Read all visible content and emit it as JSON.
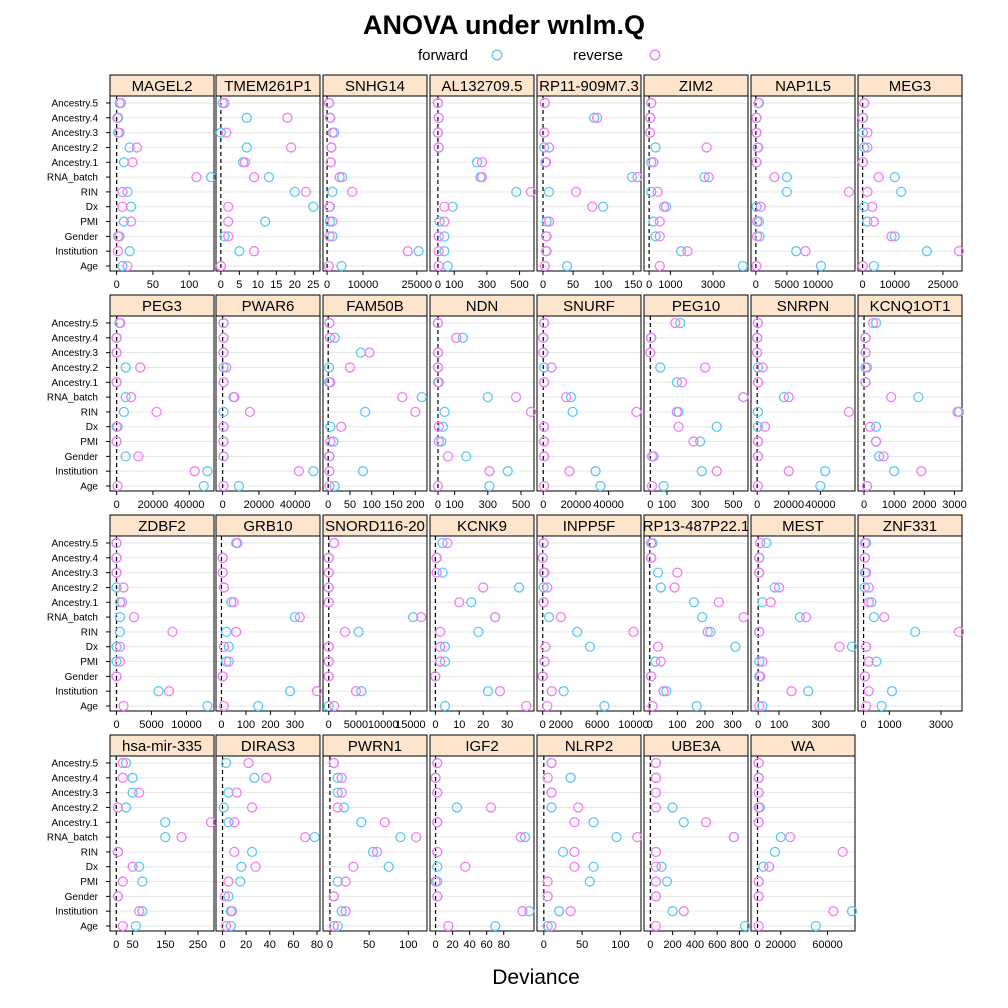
{
  "chart_data": {
    "type": "scatter",
    "title": "ANOVA under wnlm.Q",
    "xlabel": "Deviance",
    "legend": {
      "position": "top",
      "entries": [
        {
          "name": "forward",
          "color": "#5cc8f5"
        },
        {
          "name": "reverse",
          "color": "#f57cf0"
        }
      ]
    },
    "factors": [
      "Ancestry.5",
      "Ancestry.4",
      "Ancestry.3",
      "Ancestry.2",
      "Ancestry.1",
      "RNA_batch",
      "RIN",
      "Dx",
      "PMI",
      "Gender",
      "Institution",
      "Age"
    ],
    "colors": {
      "forward": "#5cc8f5",
      "reverse": "#f57cf0",
      "strip": "#fde5cd",
      "grid": "#e6e6e6"
    },
    "panels": [
      {
        "gene": "MAGEL2",
        "ticks": [
          0,
          50,
          100
        ],
        "xlim": [
          -5,
          130
        ],
        "forward": [
          4,
          2,
          2,
          18,
          10,
          130,
          15,
          20,
          10,
          4,
          18,
          8
        ],
        "reverse": [
          6,
          1,
          4,
          28,
          22,
          110,
          8,
          8,
          20,
          2,
          2,
          15
        ]
      },
      {
        "gene": "TMEM261P1",
        "ticks": [
          0,
          5,
          10,
          15,
          20,
          25
        ],
        "xlim": [
          -0.5,
          26
        ],
        "forward": [
          0.5,
          7,
          0,
          7,
          6,
          13,
          20,
          25,
          12,
          1,
          5,
          0
        ],
        "reverse": [
          1,
          18,
          1.5,
          19,
          6.5,
          9,
          23,
          2,
          2,
          2,
          9,
          0
        ]
      },
      {
        "gene": "SNHG14",
        "ticks": [
          0,
          10000,
          25000
        ],
        "xlim": [
          -300,
          27000
        ],
        "forward": [
          600,
          900,
          2000,
          1200,
          1000,
          4200,
          1500,
          800,
          800,
          1500,
          25500,
          4000
        ],
        "reverse": [
          500,
          800,
          1500,
          1200,
          1000,
          3500,
          7000,
          700,
          1500,
          700,
          22500,
          500
        ]
      },
      {
        "gene": "AL132709.5",
        "ticks": [
          0,
          100,
          300,
          500
        ],
        "xlim": [
          -30,
          570
        ],
        "forward": [
          0,
          5,
          0,
          5,
          240,
          260,
          480,
          90,
          10,
          40,
          40,
          60
        ],
        "reverse": [
          0,
          5,
          0,
          5,
          270,
          270,
          570,
          40,
          40,
          5,
          5,
          5
        ]
      },
      {
        "gene": "RP11-909M7.3",
        "ticks": [
          0,
          50,
          100,
          150
        ],
        "xlim": [
          -5,
          158
        ],
        "forward": [
          3,
          85,
          2,
          2,
          4,
          148,
          10,
          100,
          6,
          6,
          6,
          40
        ],
        "reverse": [
          3,
          90,
          2,
          10,
          5,
          157,
          55,
          82,
          10,
          5,
          5,
          3
        ]
      },
      {
        "gene": "ZIM2",
        "ticks": [
          0,
          1000,
          3000
        ],
        "xlim": [
          -100,
          4500
        ],
        "forward": [
          100,
          50,
          50,
          300,
          100,
          2600,
          100,
          800,
          200,
          300,
          1500,
          4400
        ],
        "reverse": [
          100,
          50,
          50,
          2700,
          200,
          2800,
          400,
          700,
          500,
          500,
          1800,
          500
        ]
      },
      {
        "gene": "NAP1L5",
        "ticks": [
          0,
          5000,
          10000
        ],
        "xlim": [
          -300,
          15500
        ],
        "forward": [
          400,
          100,
          100,
          400,
          100,
          5000,
          5000,
          100,
          500,
          600,
          6500,
          10500
        ],
        "reverse": [
          500,
          100,
          100,
          300,
          100,
          3000,
          15000,
          800,
          200,
          200,
          8000,
          100
        ]
      },
      {
        "gene": "MEG3",
        "ticks": [
          0,
          10000,
          25000
        ],
        "xlim": [
          -500,
          30000
        ],
        "forward": [
          500,
          100,
          100,
          500,
          100,
          10000,
          12000,
          500,
          1500,
          10000,
          20000,
          3500
        ],
        "reverse": [
          500,
          100,
          1500,
          1500,
          100,
          5000,
          1500,
          3000,
          3500,
          9000,
          30000,
          100
        ]
      },
      {
        "gene": "PEG3",
        "ticks": [
          0,
          20000,
          40000
        ],
        "xlim": [
          -2000,
          52000
        ],
        "forward": [
          1500,
          0,
          0,
          5000,
          0,
          5000,
          4000,
          0,
          0,
          5000,
          50000,
          48000
        ],
        "reverse": [
          2000,
          0,
          0,
          13000,
          0,
          8000,
          22000,
          500,
          0,
          12000,
          43000,
          500
        ]
      },
      {
        "gene": "PWAR6",
        "ticks": [
          0,
          20000,
          40000
        ],
        "xlim": [
          -2000,
          52000
        ],
        "forward": [
          500,
          500,
          500,
          500,
          500,
          6000,
          500,
          500,
          500,
          500,
          50000,
          9000
        ],
        "reverse": [
          500,
          500,
          500,
          2000,
          500,
          6500,
          15000,
          500,
          500,
          500,
          42000,
          500
        ]
      },
      {
        "gene": "FAM50B",
        "ticks": [
          0,
          50,
          100,
          150,
          200
        ],
        "xlim": [
          -5,
          220
        ],
        "forward": [
          3,
          15,
          75,
          2,
          2,
          215,
          85,
          5,
          12,
          2,
          80,
          15
        ],
        "reverse": [
          3,
          4,
          95,
          50,
          5,
          170,
          200,
          30,
          5,
          3,
          3,
          3
        ]
      },
      {
        "gene": "NDN",
        "ticks": [
          0,
          100,
          300,
          500
        ],
        "xlim": [
          -30,
          560
        ],
        "forward": [
          0,
          150,
          0,
          0,
          5,
          300,
          40,
          30,
          20,
          170,
          420,
          310
        ],
        "reverse": [
          0,
          110,
          0,
          0,
          0,
          470,
          560,
          5,
          5,
          60,
          310,
          0
        ]
      },
      {
        "gene": "SNURF",
        "ticks": [
          0,
          20000,
          40000
        ],
        "xlim": [
          -2000,
          58000
        ],
        "forward": [
          500,
          0,
          0,
          500,
          500,
          17000,
          18000,
          500,
          500,
          500,
          32000,
          35000
        ],
        "reverse": [
          500,
          0,
          0,
          5000,
          500,
          14000,
          57000,
          500,
          500,
          500,
          16000,
          500
        ]
      },
      {
        "gene": "PEG10",
        "ticks": [
          0,
          100,
          300,
          500
        ],
        "xlim": [
          -20,
          570
        ],
        "forward": [
          180,
          5,
          0,
          60,
          160,
          560,
          170,
          400,
          300,
          20,
          310,
          80
        ],
        "reverse": [
          150,
          5,
          0,
          330,
          190,
          560,
          160,
          170,
          260,
          10,
          400,
          10
        ]
      },
      {
        "gene": "SNRPN",
        "ticks": [
          0,
          20000,
          40000
        ],
        "xlim": [
          -2000,
          60000
        ],
        "forward": [
          500,
          0,
          0,
          500,
          500,
          17000,
          500,
          500,
          500,
          500,
          43000,
          40000
        ],
        "reverse": [
          500,
          0,
          0,
          3500,
          500,
          20000,
          58000,
          5000,
          500,
          500,
          20000,
          500
        ]
      },
      {
        "gene": "KCNQ1OT1",
        "ticks": [
          0,
          1000,
          2000,
          3000
        ],
        "xlim": [
          -100,
          3150
        ],
        "forward": [
          400,
          50,
          50,
          50,
          50,
          1800,
          3150,
          400,
          400,
          500,
          1000,
          100
        ],
        "reverse": [
          300,
          50,
          50,
          100,
          50,
          900,
          3100,
          200,
          400,
          650,
          1900,
          100
        ]
      },
      {
        "gene": "ZDBF2",
        "ticks": [
          0,
          5000,
          10000
        ],
        "xlim": [
          -500,
          13500
        ],
        "forward": [
          0,
          0,
          0,
          0,
          500,
          500,
          500,
          0,
          0,
          0,
          6000,
          13000
        ],
        "reverse": [
          0,
          0,
          0,
          1000,
          800,
          2500,
          8000,
          500,
          500,
          0,
          7500,
          1000
        ]
      },
      {
        "gene": "GRB10",
        "ticks": [
          0,
          100,
          200,
          300
        ],
        "xlim": [
          -10,
          390
        ],
        "forward": [
          60,
          5,
          5,
          10,
          40,
          300,
          20,
          30,
          20,
          5,
          280,
          150
        ],
        "reverse": [
          65,
          5,
          5,
          10,
          50,
          320,
          60,
          10,
          30,
          5,
          390,
          10
        ]
      },
      {
        "gene": "SNORD116-20",
        "ticks": [
          0,
          5000,
          10000,
          15000
        ],
        "xlim": [
          -500,
          17500
        ],
        "forward": [
          1000,
          0,
          0,
          0,
          0,
          15500,
          5500,
          0,
          0,
          0,
          6000,
          0
        ],
        "reverse": [
          1000,
          0,
          0,
          0,
          0,
          17000,
          3000,
          0,
          0,
          0,
          5000,
          1000
        ]
      },
      {
        "gene": "KCNK9",
        "ticks": [
          0,
          10,
          20,
          30
        ],
        "xlim": [
          -1,
          40
        ],
        "forward": [
          3,
          0.5,
          3,
          35,
          15,
          25,
          18,
          4,
          4,
          0,
          22,
          4
        ],
        "reverse": [
          5,
          0.5,
          0.5,
          20,
          10,
          25,
          2,
          2,
          2,
          0,
          27,
          38
        ]
      },
      {
        "gene": "INPP5F",
        "ticks": [
          0,
          2000,
          6000,
          10000
        ],
        "xlim": [
          -300,
          10500
        ],
        "forward": [
          100,
          0,
          100,
          100,
          100,
          700,
          3800,
          5200,
          200,
          0,
          2300,
          6800
        ],
        "reverse": [
          100,
          0,
          200,
          500,
          100,
          2000,
          10000,
          300,
          200,
          0,
          1000,
          500
        ]
      },
      {
        "gene": "RP13-487P22.1",
        "ticks": [
          0,
          100,
          200,
          300
        ],
        "xlim": [
          -10,
          345
        ],
        "forward": [
          10,
          5,
          30,
          40,
          160,
          190,
          220,
          310,
          20,
          5,
          60,
          170
        ],
        "reverse": [
          5,
          5,
          100,
          90,
          250,
          340,
          210,
          30,
          40,
          5,
          50,
          10
        ]
      },
      {
        "gene": "MEST",
        "ticks": [
          0,
          100,
          300
        ],
        "xlim": [
          -20,
          450
        ],
        "forward": [
          40,
          5,
          5,
          80,
          20,
          200,
          5,
          450,
          5,
          5,
          240,
          20
        ],
        "reverse": [
          10,
          5,
          5,
          100,
          60,
          230,
          5,
          390,
          20,
          10,
          160,
          5
        ]
      },
      {
        "gene": "ZNF331",
        "ticks": [
          0,
          1000,
          3000
        ],
        "xlim": [
          -100,
          3700
        ],
        "forward": [
          100,
          50,
          50,
          50,
          300,
          400,
          2000,
          100,
          500,
          50,
          1100,
          700
        ],
        "reverse": [
          50,
          50,
          100,
          200,
          200,
          800,
          3700,
          100,
          200,
          50,
          200,
          100
        ]
      },
      {
        "gene": "hsa-mir-335",
        "ticks": [
          0,
          50,
          150,
          250
        ],
        "xlim": [
          -10,
          290
        ],
        "forward": [
          30,
          50,
          50,
          30,
          150,
          150,
          5,
          70,
          80,
          5,
          80,
          60
        ],
        "reverse": [
          20,
          20,
          70,
          5,
          290,
          200,
          5,
          50,
          20,
          5,
          70,
          20
        ]
      },
      {
        "gene": "DIRAS3",
        "ticks": [
          0,
          20,
          40,
          60,
          80
        ],
        "xlim": [
          -3,
          80
        ],
        "forward": [
          3,
          27,
          5,
          1,
          5,
          78,
          25,
          16,
          15,
          5,
          7,
          7
        ],
        "reverse": [
          22,
          37,
          12,
          25,
          10,
          70,
          10,
          28,
          5,
          2,
          8,
          3
        ]
      },
      {
        "gene": "PWRN1",
        "ticks": [
          0,
          50,
          100
        ],
        "xlim": [
          -5,
          120
        ],
        "forward": [
          5,
          10,
          10,
          18,
          40,
          90,
          55,
          75,
          10,
          5,
          15,
          10
        ],
        "reverse": [
          5,
          15,
          15,
          10,
          70,
          110,
          60,
          30,
          20,
          5,
          20,
          5
        ]
      },
      {
        "gene": "IGF2",
        "ticks": [
          0,
          20,
          40,
          60,
          80
        ],
        "xlim": [
          -3,
          112
        ],
        "forward": [
          2,
          0,
          2,
          25,
          2,
          105,
          2,
          2,
          2,
          2,
          110,
          70
        ],
        "reverse": [
          2,
          0,
          2,
          65,
          2,
          100,
          2,
          35,
          0,
          2,
          102,
          15
        ]
      },
      {
        "gene": "NLRP2",
        "ticks": [
          0,
          50,
          100
        ],
        "xlim": [
          -5,
          123
        ],
        "forward": [
          10,
          35,
          10,
          10,
          65,
          95,
          25,
          65,
          60,
          5,
          20,
          5
        ],
        "reverse": [
          10,
          5,
          10,
          45,
          40,
          122,
          40,
          40,
          5,
          5,
          35,
          10
        ]
      },
      {
        "gene": "UBE3A",
        "ticks": [
          0,
          200,
          400,
          600,
          800
        ],
        "xlim": [
          -30,
          850
        ],
        "forward": [
          50,
          50,
          50,
          200,
          300,
          750,
          50,
          100,
          150,
          50,
          200,
          850
        ],
        "reverse": [
          50,
          50,
          50,
          50,
          500,
          750,
          50,
          50,
          50,
          50,
          300,
          50
        ]
      },
      {
        "gene": "WA",
        "ticks": [
          0,
          20000,
          60000
        ],
        "xlim": [
          -3000,
          81000
        ],
        "forward": [
          1000,
          1000,
          1000,
          2000,
          1000,
          20000,
          15000,
          5000,
          1000,
          1000,
          81000,
          50000
        ],
        "reverse": [
          1000,
          1000,
          1000,
          1000,
          1000,
          28000,
          73000,
          10000,
          1000,
          1000,
          65000,
          1000
        ]
      }
    ]
  }
}
